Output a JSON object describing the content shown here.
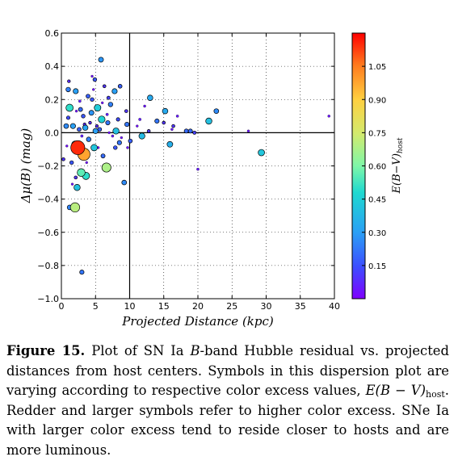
{
  "chart_data": {
    "type": "scatter",
    "xlabel": "Projected Distance (kpc)",
    "ylabel": "Δμ(B) (mag)",
    "xlim": [
      0,
      40
    ],
    "ylim": [
      -1.0,
      0.6
    ],
    "xticks": [
      "0",
      "5",
      "10",
      "15",
      "20",
      "25",
      "30",
      "35",
      "40"
    ],
    "yticks": [
      "−1.0",
      "−0.8",
      "−0.6",
      "−0.4",
      "−0.2",
      "0.0",
      "0.2",
      "0.4",
      "0.6"
    ],
    "grid": true,
    "reference_lines": {
      "x": 10,
      "y": 0
    },
    "colorbar": {
      "label": "E(B−V)host",
      "range": [
        0.0,
        1.2
      ],
      "ticks": [
        "0.15",
        "0.30",
        "0.45",
        "0.60",
        "0.75",
        "0.90",
        "1.05"
      ],
      "colormap": "jet"
    },
    "points": [
      {
        "x": 2.4,
        "y": -0.09,
        "c": 1.15
      },
      {
        "x": 3.3,
        "y": -0.13,
        "c": 0.98
      },
      {
        "x": 2.0,
        "y": -0.45,
        "c": 0.7
      },
      {
        "x": 6.6,
        "y": -0.21,
        "c": 0.68
      },
      {
        "x": 2.9,
        "y": -0.24,
        "c": 0.56
      },
      {
        "x": 3.6,
        "y": -0.26,
        "c": 0.5
      },
      {
        "x": 2.3,
        "y": -0.33,
        "c": 0.4
      },
      {
        "x": 1.2,
        "y": 0.15,
        "c": 0.5
      },
      {
        "x": 5.3,
        "y": 0.15,
        "c": 0.44
      },
      {
        "x": 5.9,
        "y": 0.08,
        "c": 0.46
      },
      {
        "x": 2.0,
        "y": -0.07,
        "c": 0.45
      },
      {
        "x": 4.8,
        "y": -0.09,
        "c": 0.42
      },
      {
        "x": 8.0,
        "y": 0.01,
        "c": 0.4
      },
      {
        "x": 11.8,
        "y": -0.02,
        "c": 0.38
      },
      {
        "x": 21.6,
        "y": 0.07,
        "c": 0.4
      },
      {
        "x": 15.9,
        "y": -0.07,
        "c": 0.35
      },
      {
        "x": 13.0,
        "y": 0.21,
        "c": 0.33
      },
      {
        "x": 1.7,
        "y": 0.04,
        "c": 0.3
      },
      {
        "x": 5.8,
        "y": 0.44,
        "c": 0.28
      },
      {
        "x": 2.1,
        "y": 0.25,
        "c": 0.3
      },
      {
        "x": 3.5,
        "y": 0.03,
        "c": 0.32
      },
      {
        "x": 4.4,
        "y": 0.12,
        "c": 0.28
      },
      {
        "x": 7.8,
        "y": 0.25,
        "c": 0.3
      },
      {
        "x": 5.0,
        "y": 0.01,
        "c": 0.3
      },
      {
        "x": 9.2,
        "y": -0.3,
        "c": 0.26
      },
      {
        "x": 29.3,
        "y": -0.12,
        "c": 0.42
      },
      {
        "x": 22.7,
        "y": 0.13,
        "c": 0.26
      },
      {
        "x": 15.2,
        "y": 0.13,
        "c": 0.33
      },
      {
        "x": 1.0,
        "y": 0.26,
        "c": 0.24
      },
      {
        "x": 1.2,
        "y": -0.45,
        "c": 0.25
      },
      {
        "x": 3.0,
        "y": -0.84,
        "c": 0.22
      },
      {
        "x": 0.7,
        "y": 0.04,
        "c": 0.26
      },
      {
        "x": 8.5,
        "y": -0.06,
        "c": 0.22
      },
      {
        "x": 4.0,
        "y": -0.04,
        "c": 0.24
      },
      {
        "x": 6.8,
        "y": 0.06,
        "c": 0.22
      },
      {
        "x": 2.8,
        "y": 0.14,
        "c": 0.2
      },
      {
        "x": 9.6,
        "y": 0.05,
        "c": 0.22
      },
      {
        "x": 18.3,
        "y": 0.01,
        "c": 0.2
      },
      {
        "x": 18.9,
        "y": 0.01,
        "c": 0.2
      },
      {
        "x": 14.0,
        "y": 0.07,
        "c": 0.22
      },
      {
        "x": 7.2,
        "y": 0.17,
        "c": 0.24
      },
      {
        "x": 6.1,
        "y": -0.14,
        "c": 0.2
      },
      {
        "x": 10.1,
        "y": -0.05,
        "c": 0.18
      },
      {
        "x": 1.5,
        "y": -0.18,
        "c": 0.16
      },
      {
        "x": 4.5,
        "y": 0.2,
        "c": 0.16
      },
      {
        "x": 8.6,
        "y": 0.28,
        "c": 0.18
      },
      {
        "x": 3.9,
        "y": 0.22,
        "c": 0.18
      },
      {
        "x": 4.9,
        "y": 0.32,
        "c": 0.16
      },
      {
        "x": 2.6,
        "y": 0.02,
        "c": 0.18
      },
      {
        "x": 3.2,
        "y": 0.1,
        "c": 0.16
      },
      {
        "x": 5.6,
        "y": 0.02,
        "c": 0.18
      },
      {
        "x": 7.9,
        "y": -0.09,
        "c": 0.16
      },
      {
        "x": 8.3,
        "y": 0.08,
        "c": 0.14
      },
      {
        "x": 1.0,
        "y": 0.09,
        "c": 0.14
      },
      {
        "x": 12.8,
        "y": 0.01,
        "c": 0.1
      },
      {
        "x": 15.0,
        "y": 0.06,
        "c": 0.1
      },
      {
        "x": 16.4,
        "y": 0.04,
        "c": 0.1
      },
      {
        "x": 19.5,
        "y": 0.0,
        "c": 0.12
      },
      {
        "x": 9.5,
        "y": 0.13,
        "c": 0.1
      },
      {
        "x": 6.9,
        "y": 0.21,
        "c": 0.12
      },
      {
        "x": 2.1,
        "y": -0.27,
        "c": 0.1
      },
      {
        "x": 0.3,
        "y": -0.16,
        "c": 0.1
      },
      {
        "x": 6.3,
        "y": 0.28,
        "c": 0.1
      },
      {
        "x": 1.1,
        "y": 0.31,
        "c": 0.08
      },
      {
        "x": 3.4,
        "y": 0.05,
        "c": 0.08
      },
      {
        "x": 4.2,
        "y": 0.06,
        "c": 0.08
      },
      {
        "x": 5.2,
        "y": 0.04,
        "c": 0.08
      },
      {
        "x": 6.7,
        "y": 0.11,
        "c": 0.06
      },
      {
        "x": 3.0,
        "y": -0.02,
        "c": 0.06
      },
      {
        "x": 2.7,
        "y": 0.19,
        "c": 0.06
      },
      {
        "x": 11.5,
        "y": 0.08,
        "c": 0.06
      },
      {
        "x": 17.0,
        "y": 0.1,
        "c": 0.05
      },
      {
        "x": 20.0,
        "y": -0.22,
        "c": 0.05
      },
      {
        "x": 7.5,
        "y": -0.02,
        "c": 0.05
      },
      {
        "x": 39.2,
        "y": 0.1,
        "c": 0.04
      },
      {
        "x": 27.4,
        "y": 0.01,
        "c": 0.04
      },
      {
        "x": 16.2,
        "y": 0.02,
        "c": 0.04
      },
      {
        "x": 12.2,
        "y": 0.16,
        "c": 0.04
      },
      {
        "x": 9.7,
        "y": -0.09,
        "c": 0.04
      },
      {
        "x": 4.5,
        "y": 0.34,
        "c": 0.03
      },
      {
        "x": 1.6,
        "y": -0.31,
        "c": 0.03
      },
      {
        "x": 0.8,
        "y": -0.08,
        "c": 0.03
      },
      {
        "x": 3.7,
        "y": -0.18,
        "c": 0.03
      },
      {
        "x": 5.4,
        "y": -0.09,
        "c": 0.03
      },
      {
        "x": 11.1,
        "y": 0.04,
        "c": 0.03
      },
      {
        "x": 6.0,
        "y": 0.18,
        "c": 0.03
      },
      {
        "x": 7.0,
        "y": 0.0,
        "c": 0.03
      },
      {
        "x": 2.2,
        "y": 0.13,
        "c": 0.03
      },
      {
        "x": 3.1,
        "y": -0.1,
        "c": 0.03
      },
      {
        "x": 4.7,
        "y": 0.26,
        "c": 0.03
      },
      {
        "x": 8.8,
        "y": -0.03,
        "c": 0.03
      }
    ]
  },
  "caption": {
    "fig_label": "Figure 15.",
    "text_1": " Plot of SN Ia ",
    "band": "B",
    "text_2": "-band Hubble residual vs. projected distances from host centers. Symbols in this dispersion plot are varying according to respective color excess values, ",
    "color_excess": "E(B − V)",
    "color_excess_sub": "host",
    "text_3": ". Redder and larger symbols refer to higher color excess. SNe Ia with larger color excess tend to reside closer to hosts and are more luminous."
  }
}
